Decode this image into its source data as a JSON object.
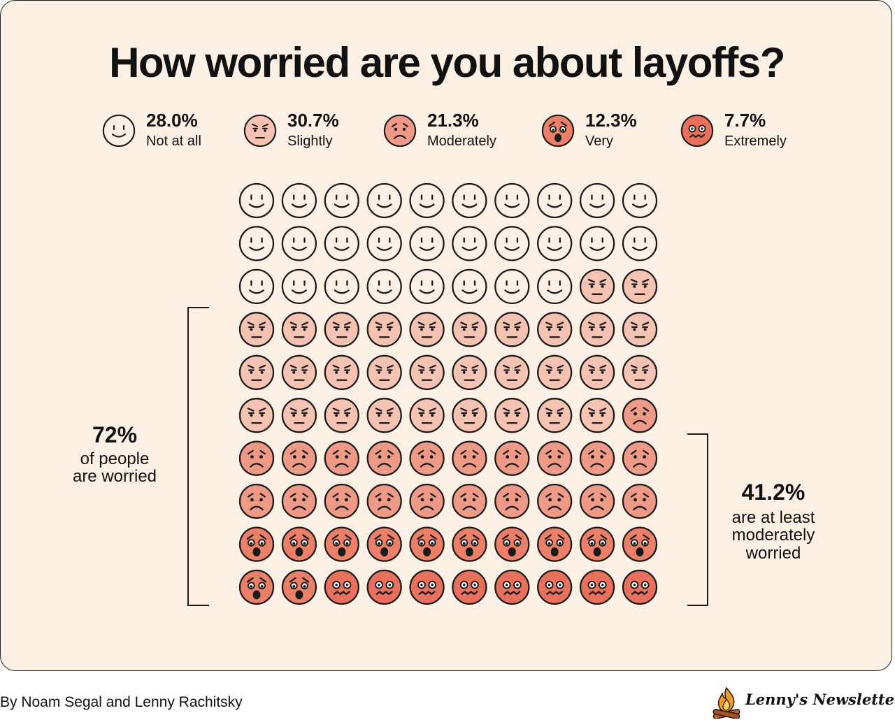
{
  "title": "How worried are you about layoffs?",
  "legend": [
    {
      "pct": "28.0%",
      "label": "Not at all",
      "level": 0
    },
    {
      "pct": "30.7%",
      "label": "Slightly",
      "level": 1
    },
    {
      "pct": "21.3%",
      "label": "Moderately",
      "level": 2
    },
    {
      "pct": "12.3%",
      "label": "Very",
      "level": 3
    },
    {
      "pct": "7.7%",
      "label": "Extremely",
      "level": 4
    }
  ],
  "chart_data": {
    "type": "waffle",
    "title": "How worried are you about layoffs?",
    "categories": [
      "Not at all",
      "Slightly",
      "Moderately",
      "Very",
      "Extremely"
    ],
    "values": [
      28.0,
      30.7,
      21.3,
      12.3,
      7.7
    ],
    "grid_counts": [
      28,
      31,
      21,
      12,
      8
    ],
    "grid_rows": 10,
    "grid_cols": 10,
    "colors": [
      "#fdf1e6",
      "#f6c2b1",
      "#ef9a86",
      "#ec7f68",
      "#e8705c"
    ],
    "icons": [
      "neutral-face-icon",
      "slightly-worried-face-icon",
      "frowning-face-icon",
      "fearful-face-icon",
      "distressed-face-icon"
    ]
  },
  "callouts": {
    "left": {
      "value": "72%",
      "line1": "of people",
      "line2": "are worried"
    },
    "right": {
      "value": "41.2%",
      "line1": "are at least",
      "line2": "moderately",
      "line3": "worried"
    }
  },
  "footer": {
    "byline": "By Noam Segal and Lenny Rachitsky",
    "brand": "Lenny's Newsletter",
    "brand_icon": "campfire-logo-icon"
  }
}
